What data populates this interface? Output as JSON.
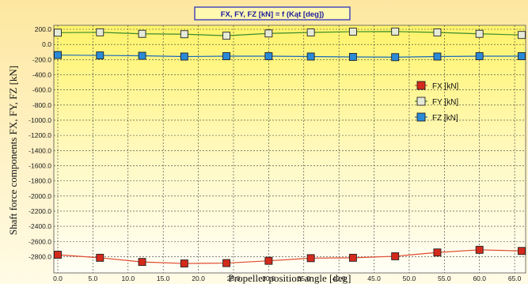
{
  "chart_data": {
    "type": "line",
    "title": "FX, FY, FZ [kN] = f (Kąt [deg])",
    "xlabel": "Propeller position angle [deg]",
    "ylabel": "Shaft force components FX, FY, FZ [kN]",
    "xlim": [
      0,
      66
    ],
    "ylim": [
      -2900,
      200
    ],
    "x_ticks": [
      0.0,
      5.0,
      10.0,
      15.0,
      20.0,
      25.0,
      30.0,
      35.0,
      40.0,
      45.0,
      50.0,
      55.0,
      60.0,
      65.0
    ],
    "x_tick_labels": [
      "0.0",
      "5.0",
      "10.0",
      "15.0",
      "20.0",
      "25.0",
      "30.0",
      "35.0",
      "40.0",
      "45.0",
      "50.0",
      "55.0",
      "60.0",
      "65.0"
    ],
    "y_ticks": [
      200,
      0,
      -200,
      -400,
      -600,
      -800,
      -1000,
      -1200,
      -1400,
      -1600,
      -1800,
      -2000,
      -2200,
      -2400,
      -2600,
      -2800
    ],
    "y_tick_labels": [
      "200.0",
      "0.0",
      "-200.0",
      "-400.0",
      "-600.0",
      "-800.0",
      "-1000.0",
      "-1200.0",
      "-1400.0",
      "-1600.0",
      "-1800.0",
      "-2000.0",
      "-2200.0",
      "-2400.0",
      "-2600.0",
      "-2800.0"
    ],
    "grid": true,
    "legend_position": "right",
    "x": [
      0,
      6,
      12,
      18,
      24,
      30,
      36,
      42,
      48,
      54,
      60,
      66
    ],
    "series": [
      {
        "name": "FX [kN]",
        "color": "#d42a1c",
        "line_color": "#e04a2e",
        "values": [
          -2775,
          -2815,
          -2870,
          -2890,
          -2885,
          -2855,
          -2820,
          -2815,
          -2795,
          -2745,
          -2710,
          -2725
        ]
      },
      {
        "name": "FY [kN]",
        "color": "#e6ead8",
        "line_color": "#3a8a2a",
        "values": [
          155,
          160,
          140,
          135,
          115,
          145,
          158,
          168,
          170,
          158,
          140,
          125
        ]
      },
      {
        "name": "FZ [kN]",
        "color": "#2a8ad8",
        "line_color": "#1a6ab8",
        "values": [
          -140,
          -145,
          -150,
          -160,
          -155,
          -155,
          -160,
          -165,
          -168,
          -160,
          -155,
          -155
        ]
      }
    ]
  },
  "colors": {
    "panel_top": "#fde7a0",
    "panel_bottom": "#fffbe6",
    "plot_top": "#fff46a",
    "plot_bottom": "#fffef6",
    "title_box": "#fff8b0",
    "title_border": "#4a4ab8",
    "grid": "#3a3a3a"
  }
}
